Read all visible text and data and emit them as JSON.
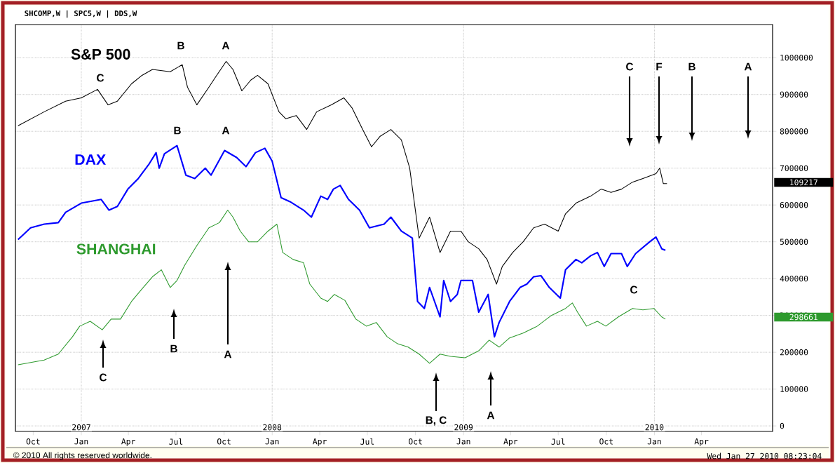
{
  "chart_data": {
    "type": "line",
    "title": "SHCOMP,W | SPC5,W | DDS,W",
    "xlim": [
      "2006-08-28",
      "2010-08-15"
    ],
    "xticks": [
      {
        "value": "2006-10-01",
        "label": "Oct"
      },
      {
        "value": "2007-01-01",
        "label": "Jan"
      },
      {
        "value": "2007-04-01",
        "label": "Apr"
      },
      {
        "value": "2007-07-01",
        "label": "Jul"
      },
      {
        "value": "2007-10-01",
        "label": "Oct"
      },
      {
        "value": "2008-01-01",
        "label": "Jan"
      },
      {
        "value": "2008-04-01",
        "label": "Apr"
      },
      {
        "value": "2008-07-01",
        "label": "Jul"
      },
      {
        "value": "2008-10-01",
        "label": "Oct"
      },
      {
        "value": "2009-01-01",
        "label": "Jan"
      },
      {
        "value": "2009-04-01",
        "label": "Apr"
      },
      {
        "value": "2009-07-01",
        "label": "Jul"
      },
      {
        "value": "2009-10-01",
        "label": "Oct"
      },
      {
        "value": "2010-01-01",
        "label": "Jan"
      },
      {
        "value": "2010-04-01",
        "label": "Apr"
      }
    ],
    "ref_lines": [
      {
        "axis": "x",
        "value": "2007-01-01",
        "label": "2007",
        "line_style": "dotted"
      },
      {
        "axis": "x",
        "value": "2008-01-01",
        "label": "2008",
        "line_style": "dotted"
      },
      {
        "axis": "x",
        "value": "2009-01-01",
        "label": "2009",
        "line_style": "dotted"
      },
      {
        "axis": "x",
        "value": "2010-01-01",
        "label": "2010",
        "line_style": "dotted"
      }
    ],
    "ylim": [
      -15000,
      1090000
    ],
    "yticks": [
      0,
      100000,
      200000,
      300000,
      400000,
      500000,
      600000,
      700000,
      800000,
      900000,
      1000000
    ],
    "grid": "y",
    "series": [
      {
        "name": "S&P 500",
        "color": "#000000",
        "x": [
          "2006-09-02",
          "2006-10-22",
          "2006-12-02",
          "2007-01-01",
          "2007-02-01",
          "2007-02-21",
          "2007-03-11",
          "2007-04-07",
          "2007-04-27",
          "2007-05-17",
          "2007-06-20",
          "2007-07-13",
          "2007-07-23",
          "2007-08-10",
          "2007-09-02",
          "2007-09-15",
          "2007-10-05",
          "2007-10-18",
          "2007-11-04",
          "2007-11-21",
          "2007-12-04",
          "2007-12-24",
          "2008-01-14",
          "2008-01-27",
          "2008-02-16",
          "2008-03-07",
          "2008-03-26",
          "2008-04-23",
          "2008-05-17",
          "2008-06-02",
          "2008-06-22",
          "2008-07-09",
          "2008-07-25",
          "2008-08-15",
          "2008-09-04",
          "2008-09-20",
          "2008-10-08",
          "2008-10-28",
          "2008-11-17",
          "2008-12-07",
          "2008-12-27",
          "2009-01-10",
          "2009-01-30",
          "2009-02-15",
          "2009-03-05",
          "2009-03-16",
          "2009-04-05",
          "2009-04-25",
          "2009-05-15",
          "2009-06-05",
          "2009-07-01",
          "2009-07-15",
          "2009-08-04",
          "2009-09-01",
          "2009-09-21",
          "2009-10-10",
          "2009-10-30",
          "2009-11-20",
          "2009-12-10",
          "2010-01-04",
          "2010-01-11",
          "2010-01-18",
          "2010-01-25"
        ],
        "values": [
          815000,
          853000,
          882000,
          891000,
          914000,
          872000,
          882000,
          929000,
          952000,
          968000,
          962000,
          981000,
          920000,
          872000,
          920000,
          948000,
          990000,
          968000,
          910000,
          939000,
          952000,
          929000,
          853000,
          834000,
          843000,
          805000,
          853000,
          872000,
          891000,
          863000,
          805000,
          758000,
          786000,
          805000,
          777000,
          700000,
          510000,
          567000,
          471000,
          529000,
          529000,
          500000,
          481000,
          452000,
          385000,
          433000,
          471000,
          500000,
          538000,
          548000,
          529000,
          576000,
          605000,
          624000,
          643000,
          634000,
          643000,
          662000,
          672000,
          685000,
          700000,
          658000,
          658000
        ]
      },
      {
        "name": "DAX",
        "color": "#0000ff",
        "x": [
          "2006-09-02",
          "2006-09-26",
          "2006-10-22",
          "2006-11-18",
          "2006-12-02",
          "2007-01-01",
          "2007-02-08",
          "2007-02-23",
          "2007-03-11",
          "2007-03-31",
          "2007-04-20",
          "2007-05-10",
          "2007-05-24",
          "2007-05-30",
          "2007-06-09",
          "2007-07-03",
          "2007-07-20",
          "2007-08-06",
          "2007-08-26",
          "2007-09-06",
          "2007-10-02",
          "2007-10-25",
          "2007-11-12",
          "2007-11-30",
          "2007-12-18",
          "2008-01-01",
          "2008-01-18",
          "2008-02-04",
          "2008-03-01",
          "2008-03-16",
          "2008-04-03",
          "2008-04-16",
          "2008-04-27",
          "2008-05-10",
          "2008-05-26",
          "2008-06-16",
          "2008-07-05",
          "2008-08-02",
          "2008-08-15",
          "2008-09-04",
          "2008-09-25",
          "2008-10-05",
          "2008-10-18",
          "2008-10-28",
          "2008-11-17",
          "2008-11-24",
          "2008-12-07",
          "2008-12-20",
          "2008-12-27",
          "2009-01-18",
          "2009-01-30",
          "2009-02-17",
          "2009-03-01",
          "2009-03-10",
          "2009-03-30",
          "2009-04-19",
          "2009-05-02",
          "2009-05-15",
          "2009-05-29",
          "2009-06-14",
          "2009-07-05",
          "2009-07-15",
          "2009-08-04",
          "2009-08-15",
          "2009-09-01",
          "2009-09-14",
          "2009-09-27",
          "2009-10-10",
          "2009-10-30",
          "2009-11-10",
          "2009-11-26",
          "2009-12-23",
          "2010-01-04",
          "2010-01-15",
          "2010-01-22"
        ],
        "values": [
          506000,
          538000,
          548000,
          552000,
          580000,
          605000,
          615000,
          586000,
          596000,
          643000,
          672000,
          710000,
          742000,
          700000,
          739000,
          761000,
          681000,
          672000,
          700000,
          681000,
          748000,
          729000,
          704000,
          742000,
          754000,
          719000,
          620000,
          609000,
          586000,
          567000,
          624000,
          615000,
          643000,
          653000,
          615000,
          586000,
          538000,
          548000,
          567000,
          529000,
          510000,
          338000,
          319000,
          376000,
          296000,
          395000,
          338000,
          357000,
          395000,
          395000,
          309000,
          357000,
          242000,
          281000,
          338000,
          376000,
          385000,
          405000,
          408000,
          376000,
          347000,
          424000,
          452000,
          443000,
          462000,
          471000,
          433000,
          468000,
          468000,
          433000,
          468000,
          500000,
          513000,
          481000,
          477000
        ]
      },
      {
        "name": "SHANGHAI",
        "color": "#2e9a2e",
        "x": [
          "2006-09-02",
          "2006-10-22",
          "2006-11-18",
          "2006-12-15",
          "2006-12-29",
          "2007-01-18",
          "2007-02-10",
          "2007-02-27",
          "2007-03-17",
          "2007-04-07",
          "2007-04-27",
          "2007-05-17",
          "2007-06-03",
          "2007-06-20",
          "2007-07-03",
          "2007-07-18",
          "2007-08-10",
          "2007-09-02",
          "2007-09-22",
          "2007-10-08",
          "2007-10-18",
          "2007-11-01",
          "2007-11-17",
          "2007-12-04",
          "2007-12-24",
          "2008-01-10",
          "2008-01-21",
          "2008-02-10",
          "2008-03-01",
          "2008-03-13",
          "2008-04-03",
          "2008-04-16",
          "2008-04-29",
          "2008-05-19",
          "2008-06-09",
          "2008-06-29",
          "2008-07-18",
          "2008-08-08",
          "2008-08-28",
          "2008-09-17",
          "2008-10-08",
          "2008-10-28",
          "2008-11-17",
          "2008-12-07",
          "2009-01-04",
          "2009-01-30",
          "2009-02-19",
          "2009-03-10",
          "2009-03-30",
          "2009-04-25",
          "2009-05-22",
          "2009-06-18",
          "2009-07-15",
          "2009-07-28",
          "2009-08-07",
          "2009-08-24",
          "2009-09-14",
          "2009-09-30",
          "2009-10-24",
          "2009-11-20",
          "2009-12-10",
          "2009-12-31",
          "2010-01-15",
          "2010-01-22"
        ],
        "values": [
          166000,
          179000,
          195000,
          242000,
          271000,
          284000,
          261000,
          290000,
          290000,
          338000,
          372000,
          405000,
          424000,
          376000,
          395000,
          437000,
          490000,
          538000,
          552000,
          586000,
          567000,
          529000,
          500000,
          500000,
          529000,
          548000,
          471000,
          452000,
          443000,
          385000,
          347000,
          338000,
          357000,
          341000,
          290000,
          271000,
          281000,
          242000,
          223000,
          214000,
          195000,
          170000,
          195000,
          189000,
          185000,
          204000,
          233000,
          214000,
          239000,
          252000,
          271000,
          300000,
          319000,
          334000,
          309000,
          271000,
          284000,
          271000,
          296000,
          319000,
          315000,
          319000,
          296000,
          290000
        ]
      }
    ],
    "annotations": [
      "C",
      "B",
      "A",
      "B",
      "A",
      "C",
      "B",
      "A",
      "B, C",
      "A",
      "C",
      "C",
      "F",
      "B",
      "A",
      "109217",
      "298661",
      "© 2010 All rights reserved worldwide.",
      "Wed Jan 27 2010 08:23:04"
    ]
  }
}
